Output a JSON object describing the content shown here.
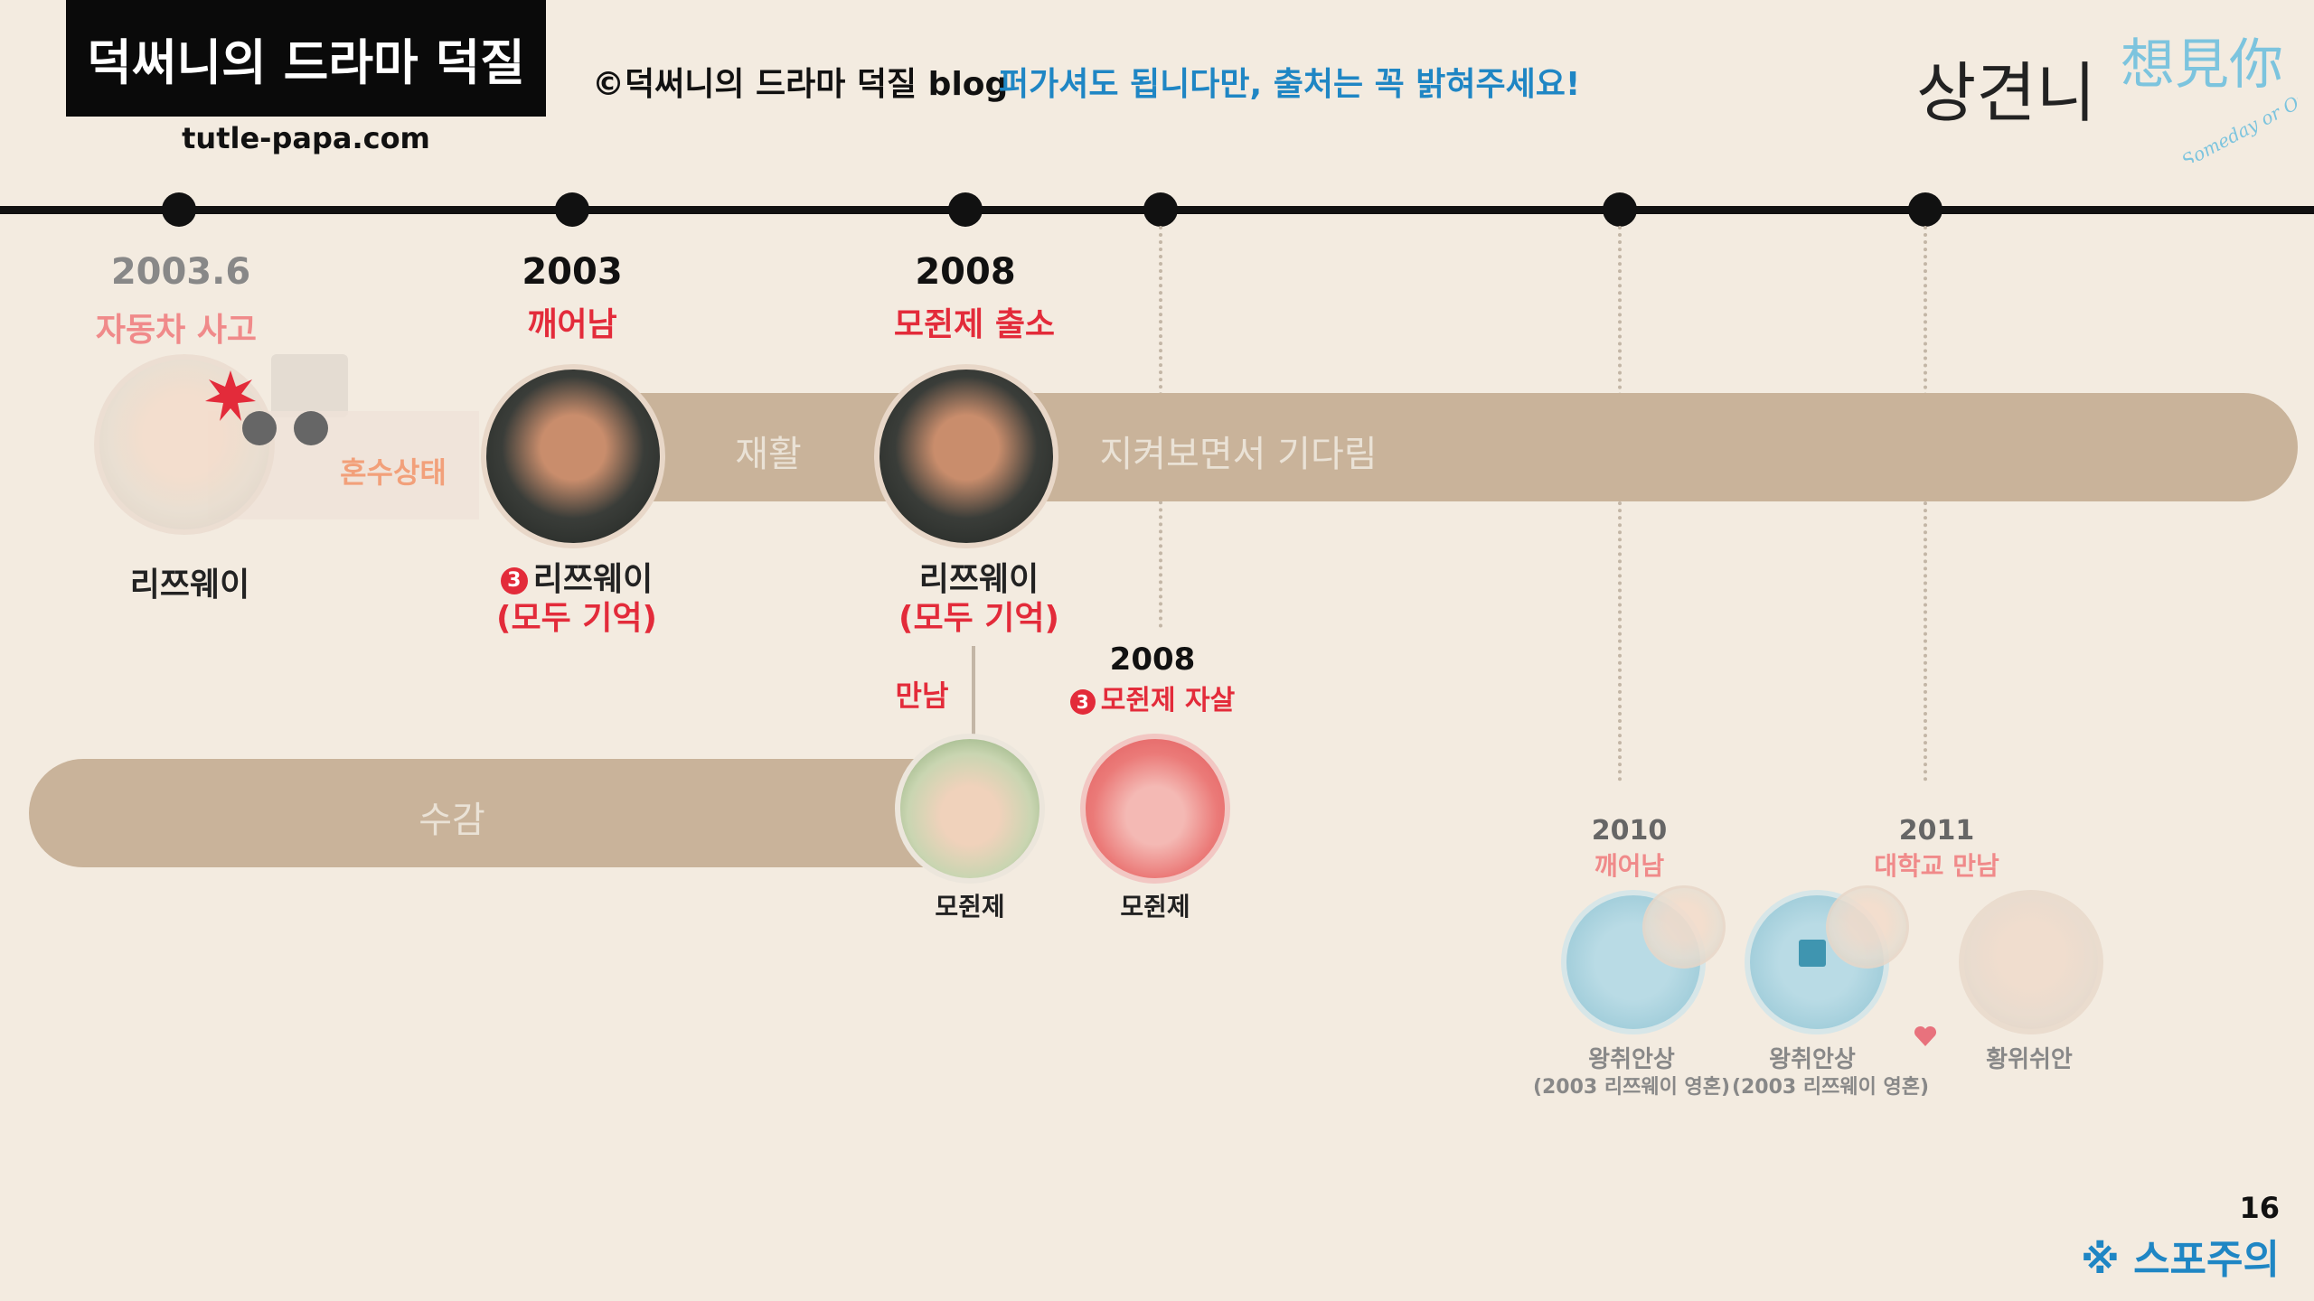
{
  "header": {
    "brand": "덕써니의 드라마 덕질",
    "site": "tutle-papa.com",
    "copyright": "©덕써니의 드라마 덕질 blog",
    "notice": "퍼가셔도 됩니다만, 출처는 꼭 밝혀주세요!",
    "drama_title": "상견니",
    "drama_calligraphy": "想見你",
    "drama_subtitle": "Someday or One Day"
  },
  "bars": {
    "rehab": "재활",
    "waiting": "지켜보면서 기다림",
    "prison": "수감"
  },
  "events": {
    "e1": {
      "year": "2003.6",
      "event": "자동차 사고",
      "state": "혼수상태",
      "name": "리쯔웨이"
    },
    "e2": {
      "year": "2003",
      "event": "깨어남",
      "badge": "3",
      "name": "리쯔웨이",
      "note": "(모두 기억)"
    },
    "e3": {
      "year": "2008",
      "event": "모쥔제 출소",
      "name": "리쯔웨이",
      "note": "(모두 기억)",
      "meet": "만남",
      "kid_name": "모쥔제"
    },
    "e4": {
      "year": "2008",
      "badge": "3",
      "event": "모쥔제 자살",
      "name": "모쥔제"
    },
    "e5": {
      "year": "2010",
      "event": "깨어남",
      "name": "왕취안상",
      "note": "(2003 리쯔웨이 영혼)"
    },
    "e6": {
      "year": "2011",
      "event": "대학교 만남",
      "name": "왕취안상",
      "note": "(2003 리쯔웨이 영혼)",
      "partner": "황위쉬안"
    }
  },
  "footer": {
    "page": "16",
    "spoiler": "※ 스포주의"
  },
  "colors": {
    "bar": "#c9b39a",
    "accent_red": "#e32b3a",
    "accent_blue": "#1f86c4",
    "background": "#f3ebe0"
  }
}
